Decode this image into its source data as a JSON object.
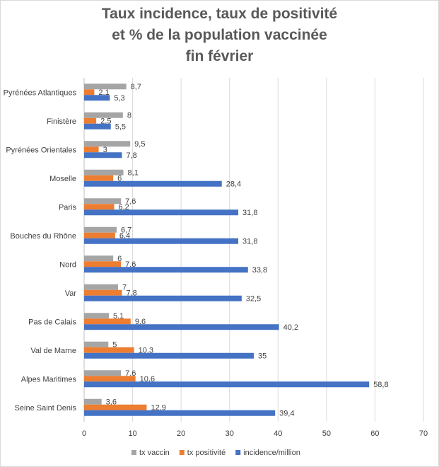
{
  "chart_data": {
    "type": "bar",
    "orientation": "horizontal",
    "title": [
      "Taux incidence, taux de positivité",
      "et % de la population vaccinée",
      "fin février"
    ],
    "categories": [
      "Pyrénées Atlantiques",
      "Finistère",
      "Pyrénées Orientales",
      "Moselle",
      "Paris",
      "Bouches du Rhône",
      "Nord",
      "Var",
      "Pas de Calais",
      "Val de Marne",
      "Alpes Maritimes",
      "Seine Saint Denis"
    ],
    "series": [
      {
        "name": "tx vaccin",
        "color": "#a5a5a5",
        "values": [
          8.7,
          8,
          9.5,
          8.1,
          7.6,
          6.7,
          6,
          7,
          5.1,
          5,
          7.6,
          3.6
        ],
        "labels": [
          "8,7",
          "8",
          "9,5",
          "8,1",
          "7,6",
          "6,7",
          "6",
          "7",
          "5,1",
          "5",
          "7,6",
          "3,6"
        ]
      },
      {
        "name": "tx positivité",
        "color": "#ed7d31",
        "values": [
          2.1,
          2.5,
          3,
          6,
          6.2,
          6.4,
          7.6,
          7.8,
          9.6,
          10.3,
          10.6,
          12.9
        ],
        "labels": [
          "2,1",
          "2,5",
          "3",
          "6",
          "6,2",
          "6,4",
          "7,6",
          "7,8",
          "9,6",
          "10,3",
          "10,6",
          "12,9"
        ]
      },
      {
        "name": "incidence/million",
        "color": "#4472c4",
        "values": [
          5.3,
          5.5,
          7.8,
          28.4,
          31.8,
          31.8,
          33.8,
          32.5,
          40.2,
          35,
          58.8,
          39.4
        ],
        "labels": [
          "5,3",
          "5,5",
          "7,8",
          "28,4",
          "31,8",
          "31,8",
          "33,8",
          "32,5",
          "40,2",
          "35",
          "58,8",
          "39,4"
        ]
      }
    ],
    "xlim": [
      0,
      70
    ],
    "xticks": [
      0,
      10,
      20,
      30,
      40,
      50,
      60,
      70
    ],
    "grid": true,
    "legend_position": "bottom"
  }
}
